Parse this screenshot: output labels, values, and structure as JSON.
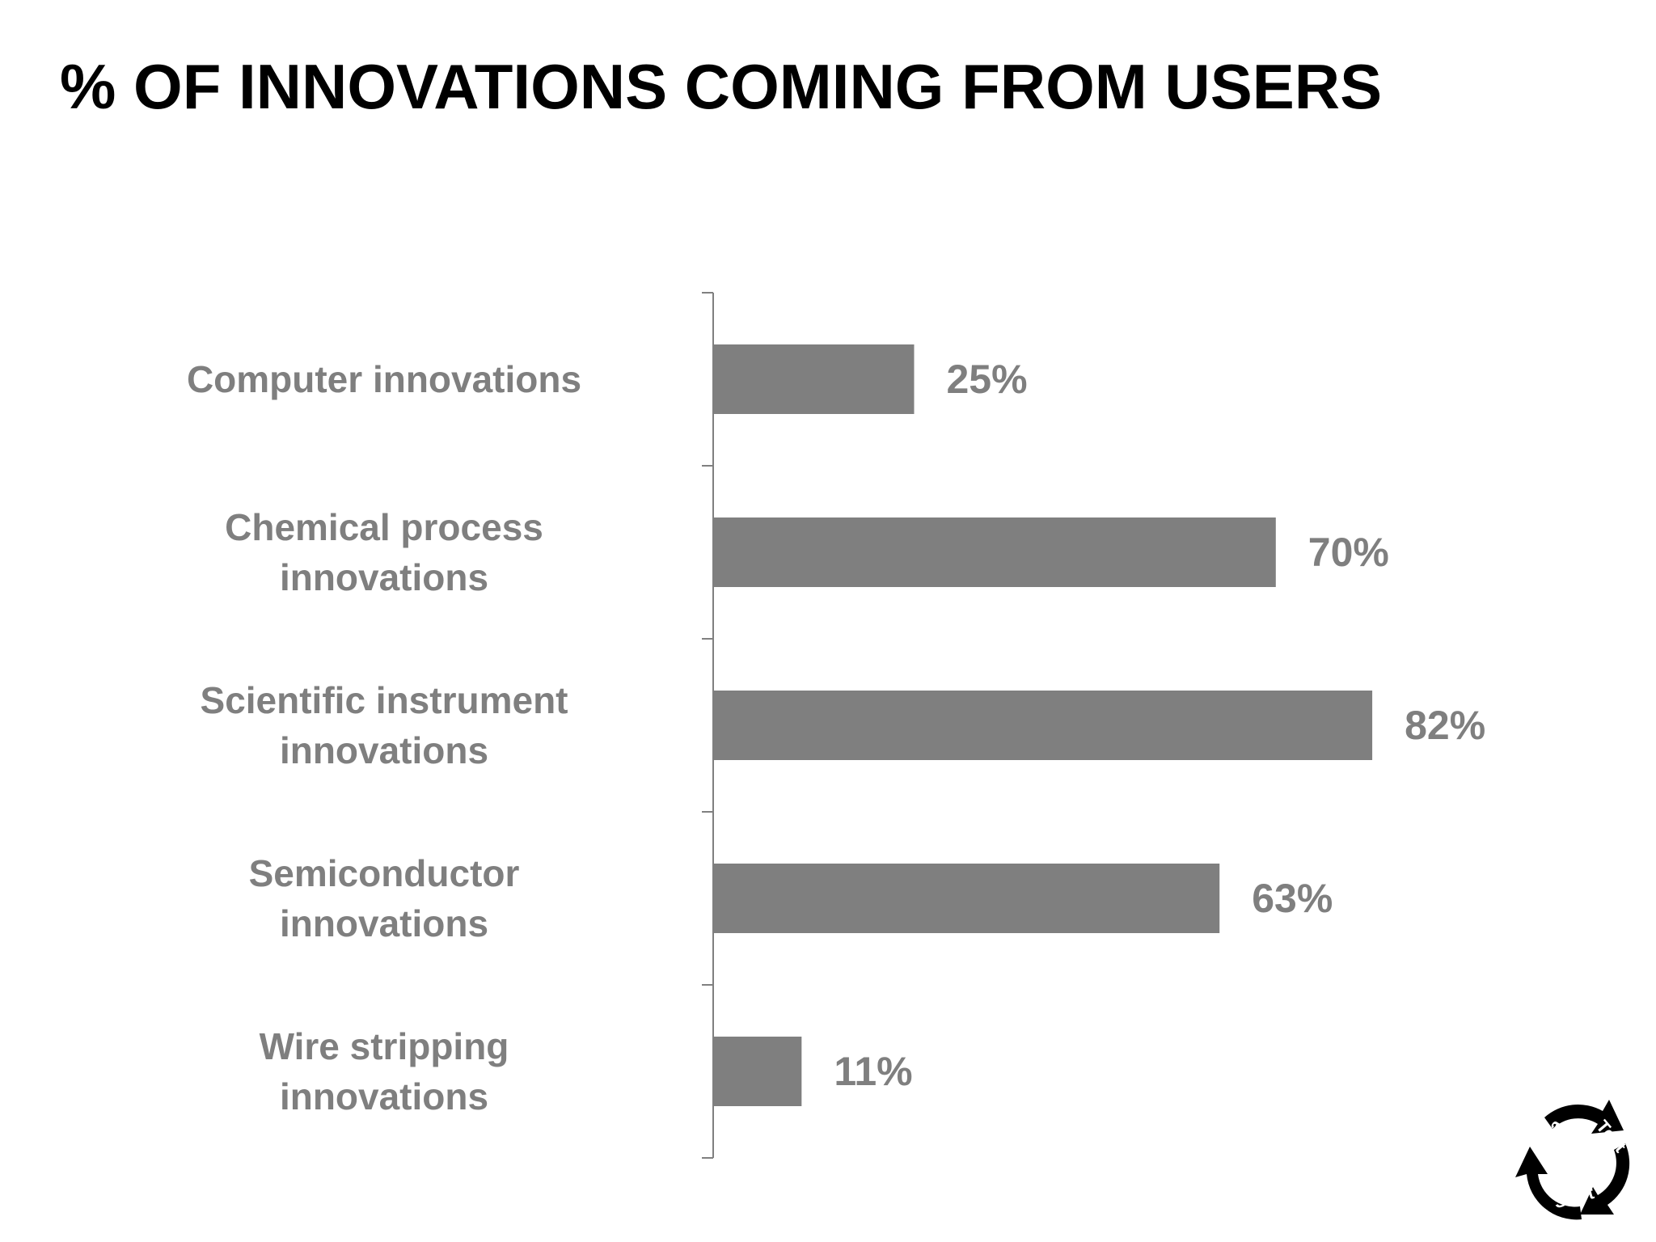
{
  "title": "% OF INNOVATIONS COMING FROM USERS",
  "colors": {
    "bar": "#7f7f7f",
    "axis": "#808080",
    "label": "#7f7f7f",
    "title": "#000000"
  },
  "chart_data": {
    "type": "bar",
    "orientation": "horizontal",
    "title": "% OF INNOVATIONS COMING FROM USERS",
    "categories": [
      [
        "Computer innovations"
      ],
      [
        "Chemical process",
        "innovations"
      ],
      [
        "Scientific instrument",
        "innovations"
      ],
      [
        "Semiconductor",
        "innovations"
      ],
      [
        "Wire stripping",
        "innovations"
      ]
    ],
    "values": [
      25,
      70,
      82,
      63,
      11
    ],
    "value_labels": [
      "25%",
      "70%",
      "82%",
      "63%",
      "11%"
    ],
    "xlabel": "",
    "ylabel": "",
    "xlim": [
      0,
      100
    ],
    "grid": false,
    "legend": "none"
  },
  "logo": {
    "words": [
      "Idea",
      "Test",
      "Start"
    ],
    "icon": "cycle-arrows-icon"
  }
}
